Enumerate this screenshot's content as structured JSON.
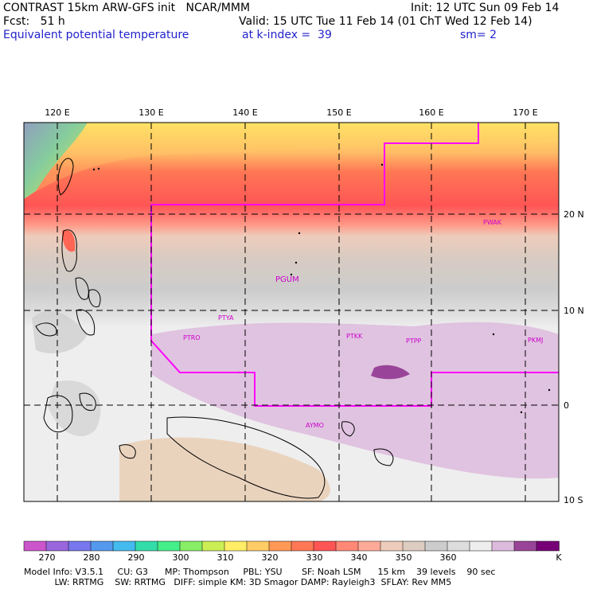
{
  "header": {
    "title": "CONTRAST 15km ARW-GFS init   NCAR/MMM",
    "init": "Init: 12 UTC Sun 09 Feb 14",
    "fcst_label": "Fcst:   51 h",
    "valid": "Valid: 15 UTC Tue 11 Feb 14 (01 ChT Wed 12 Feb 14)",
    "field": "Equivalent potential temperature",
    "level": "at k-index =  39",
    "smoothing": "sm= 2"
  },
  "map": {
    "lon_labels": [
      "120 E",
      "130 E",
      "140 E",
      "150 E",
      "160 E",
      "170 E"
    ],
    "lat_labels": [
      "20 N",
      "10 N",
      "0",
      "10 S"
    ],
    "stations": [
      "PWAK",
      "PGUM",
      "PTYA",
      "PTRO",
      "PTKK",
      "PTPP",
      "PKMJ",
      "AYMO"
    ],
    "boundary_color": "#ff00ff",
    "station_color": "#cc00cc"
  },
  "colorbar": {
    "colors": [
      "#cc55cc",
      "#9966dd",
      "#7777ee",
      "#5599ee",
      "#44bbee",
      "#33ddaa",
      "#44ee88",
      "#88ee66",
      "#ccee55",
      "#ffee66",
      "#ffcc66",
      "#ff9955",
      "#ff7755",
      "#ff5555",
      "#ff8877",
      "#ffaa99",
      "#eeccbb",
      "#ddccc0",
      "#cccccc",
      "#dddddd",
      "#eeeeee",
      "#ddbbdd",
      "#994499",
      "#770077"
    ],
    "labels": [
      "270",
      "280",
      "290",
      "300",
      "310",
      "320",
      "330",
      "340",
      "350",
      "360",
      "K"
    ]
  },
  "footer": {
    "line1": "Model Info: V3.5.1     CU: G3      MP: Thompson     PBL: YSU       SF: Noah LSM      15 km    39 levels    90 sec",
    "line2": "           LW: RRTMG    SW: RRTMG   DIFF: simple KM: 3D Smagor DAMP: Rayleigh3  SFLAY: Rev MM5"
  }
}
